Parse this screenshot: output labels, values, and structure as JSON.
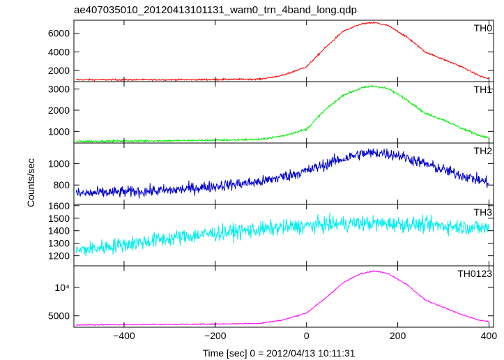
{
  "chart_data": {
    "type": "line",
    "title": "ae407035010_20120413101131_wam0_trn_4band_long.qdp",
    "xlabel": "Time [sec] 0 = 2012/04/13 10:11:31",
    "ylabel": "Counts/sec",
    "xlim": [
      -510,
      410
    ],
    "x_ticks": [
      -400,
      -200,
      0,
      200,
      400
    ],
    "x_tick_labels": [
      "−400",
      "−200",
      "0",
      "200",
      "400"
    ],
    "grid": false,
    "panels": [
      {
        "name": "TH0",
        "color": "#ff0000",
        "ylim": [
          800,
          7400
        ],
        "y_ticks": [
          2000,
          4000,
          6000
        ],
        "y_tick_labels": [
          "2000",
          "4000",
          "6000"
        ],
        "noise": 60,
        "curve": [
          [
            -505,
            1000
          ],
          [
            -300,
            1000
          ],
          [
            -200,
            1020
          ],
          [
            -100,
            1080
          ],
          [
            -50,
            1500
          ],
          [
            0,
            2400
          ],
          [
            40,
            4400
          ],
          [
            80,
            6200
          ],
          [
            120,
            7000
          ],
          [
            150,
            7150
          ],
          [
            180,
            6800
          ],
          [
            220,
            5600
          ],
          [
            260,
            4000
          ],
          [
            300,
            3200
          ],
          [
            340,
            2400
          ],
          [
            380,
            1400
          ],
          [
            400,
            1100
          ]
        ]
      },
      {
        "name": "TH1",
        "color": "#00ee00",
        "ylim": [
          450,
          3350
        ],
        "y_ticks": [
          1000,
          2000,
          3000
        ],
        "y_tick_labels": [
          "1000",
          "2000",
          "3000"
        ],
        "noise": 35,
        "curve": [
          [
            -505,
            530
          ],
          [
            -300,
            560
          ],
          [
            -200,
            580
          ],
          [
            -100,
            620
          ],
          [
            -50,
            800
          ],
          [
            0,
            1100
          ],
          [
            40,
            2000
          ],
          [
            80,
            2700
          ],
          [
            120,
            3050
          ],
          [
            150,
            3150
          ],
          [
            180,
            3000
          ],
          [
            220,
            2500
          ],
          [
            260,
            1850
          ],
          [
            300,
            1550
          ],
          [
            340,
            1150
          ],
          [
            380,
            800
          ],
          [
            400,
            700
          ]
        ]
      },
      {
        "name": "TH2",
        "color": "#0000cc",
        "ylim": [
          620,
          1190
        ],
        "y_ticks": [
          800,
          1000
        ],
        "y_tick_labels": [
          "800",
          "1000"
        ],
        "noise": 38,
        "curve": [
          [
            -505,
            720
          ],
          [
            -300,
            750
          ],
          [
            -200,
            790
          ],
          [
            -100,
            830
          ],
          [
            0,
            930
          ],
          [
            60,
            1020
          ],
          [
            120,
            1090
          ],
          [
            160,
            1100
          ],
          [
            200,
            1080
          ],
          [
            250,
            1010
          ],
          [
            300,
            940
          ],
          [
            350,
            880
          ],
          [
            400,
            820
          ]
        ]
      },
      {
        "name": "TH3",
        "color": "#00eeee",
        "ylim": [
          1120,
          1610
        ],
        "y_ticks": [
          1200,
          1300,
          1400,
          1500,
          1600
        ],
        "y_tick_labels": [
          "1200",
          "1300",
          "1400",
          "1500",
          "1600"
        ],
        "noise": 45,
        "curve": [
          [
            -505,
            1240
          ],
          [
            -400,
            1290
          ],
          [
            -300,
            1340
          ],
          [
            -200,
            1380
          ],
          [
            -100,
            1410
          ],
          [
            0,
            1440
          ],
          [
            100,
            1460
          ],
          [
            200,
            1455
          ],
          [
            300,
            1440
          ],
          [
            400,
            1420
          ]
        ]
      },
      {
        "name": "TH0123",
        "color": "#ff00ff",
        "ylim": [
          3000,
          13800
        ],
        "y_ticks": [
          5000,
          10000
        ],
        "y_tick_labels": [
          "5000",
          "10⁴"
        ],
        "noise": 70,
        "curve": [
          [
            -505,
            3400
          ],
          [
            -300,
            3500
          ],
          [
            -200,
            3550
          ],
          [
            -100,
            3700
          ],
          [
            -50,
            4300
          ],
          [
            0,
            5500
          ],
          [
            40,
            8000
          ],
          [
            80,
            10800
          ],
          [
            120,
            12500
          ],
          [
            150,
            12900
          ],
          [
            180,
            12400
          ],
          [
            220,
            10500
          ],
          [
            260,
            7800
          ],
          [
            300,
            6500
          ],
          [
            340,
            5200
          ],
          [
            380,
            4200
          ],
          [
            400,
            4000
          ]
        ]
      }
    ]
  }
}
